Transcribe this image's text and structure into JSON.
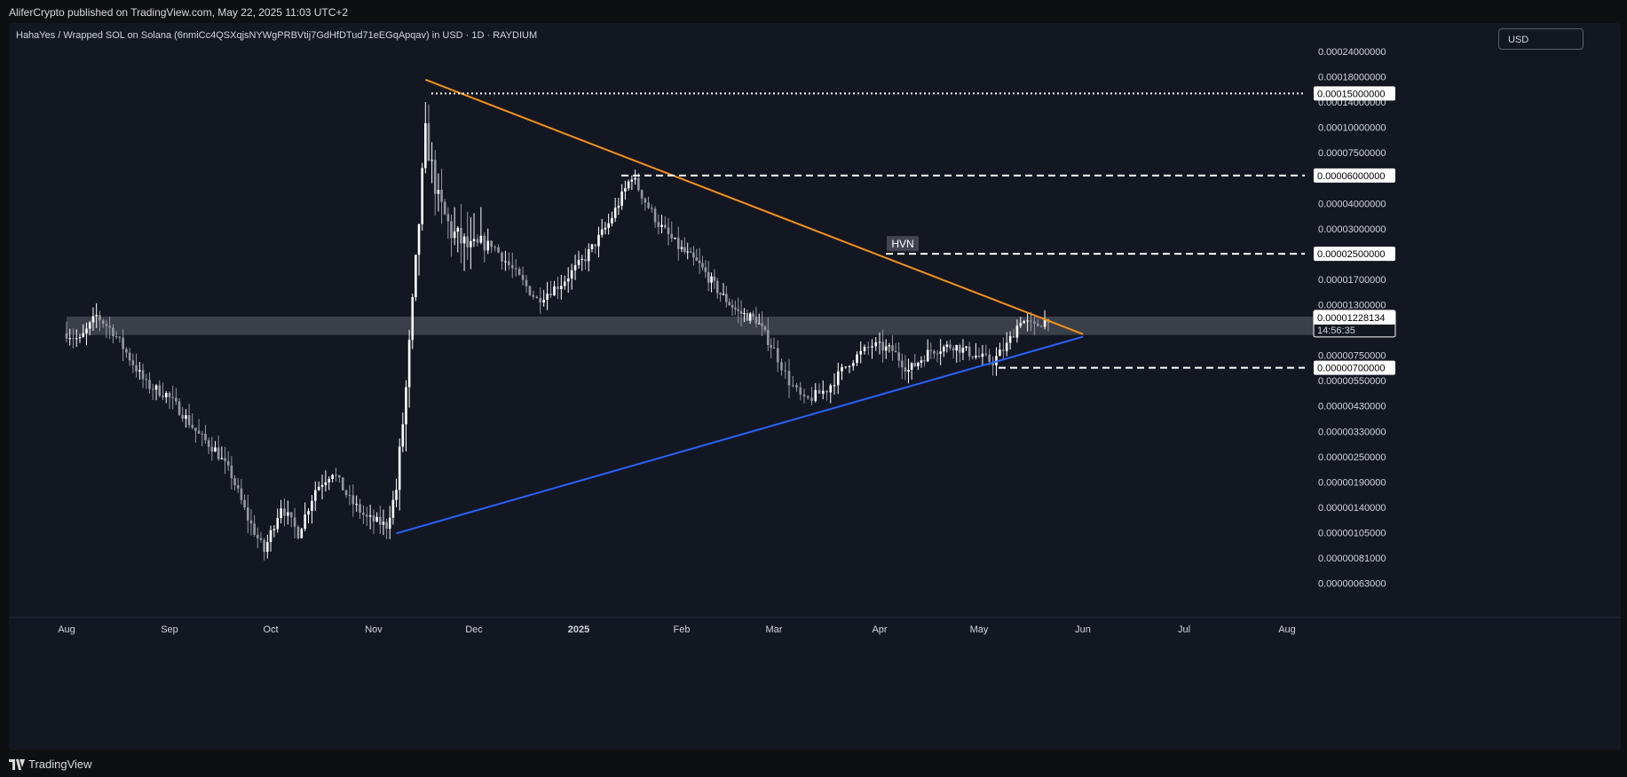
{
  "header": {
    "publisher": "AliferCrypto published on TradingView.com, May 22, 2025 11:03 UTC+2"
  },
  "chart_header": {
    "symbol_line": "HahaYes / Wrapped SOL on Solana (6nmiCc4QSXqjsNYWgPRBVtij7GdHfDTud71eEGqApqav) in USD · 1D · RAYDIUM",
    "currency_button": "USD"
  },
  "footer": {
    "brand": "TradingView"
  },
  "colors": {
    "bg": "#131722",
    "up": "#ffffff",
    "down": "#9598a1",
    "resistance": "#f5921b",
    "support": "#2962ff",
    "zone": "#5d6069"
  },
  "chart_data": {
    "type": "candlestick",
    "scale": "log",
    "x_ticks": [
      "Aug",
      "Sep",
      "Oct",
      "Nov",
      "Dec",
      "2025",
      "Feb",
      "Mar",
      "Apr",
      "May",
      "Jun",
      "Jul",
      "Aug"
    ],
    "y_ticks": [
      "0.00024000000",
      "0.00018000000",
      "0.00014000000",
      "0.00010000000",
      "0.00007500000",
      "0.00005500000",
      "0.00004000000",
      "0.00003000000",
      "0.00002200000",
      "0.00001700000",
      "0.00001300000",
      "0.00001000000",
      "0.00000750000",
      "0.00000550000",
      "0.00000430000",
      "0.00000330000",
      "0.00000250000",
      "0.00000190000",
      "0.00000140000",
      "0.00000105000",
      "0.00000081000",
      "0.00000063000"
    ],
    "price_levels": [
      {
        "label": "0.00015000000",
        "value": 0.00015,
        "style": "dotted"
      },
      {
        "label": "0.00006000000",
        "value": 6e-05,
        "style": "dashed"
      },
      {
        "label": "0.00002500000",
        "value": 2.5e-05,
        "style": "dashed",
        "note": "HVN"
      },
      {
        "label": "0.00000700000",
        "value": 7e-06,
        "style": "dashed"
      }
    ],
    "current_price": {
      "label": "0.00001228134",
      "countdown": "14:56:35",
      "value": 1.228134e-05
    },
    "annotation": "HVN",
    "zone": {
      "low": 1.01e-05,
      "high": 1.24e-05
    },
    "trendlines": [
      {
        "name": "resistance",
        "from": [
          "2024-11-17",
          0.000175
        ],
        "to": [
          "2025-06-01",
          1.02e-05
        ]
      },
      {
        "name": "support",
        "from": [
          "2024-11-08",
          1.1e-06
        ],
        "to": [
          "2025-06-01",
          9.9e-06
        ]
      }
    ],
    "price_path": [
      [
        "2024-07-31",
        1.05e-05
      ],
      [
        "2024-08-05",
        9.5e-06
      ],
      [
        "2024-08-10",
        1.25e-05
      ],
      [
        "2024-08-15",
        1.05e-05
      ],
      [
        "2024-08-20",
        7.8e-06
      ],
      [
        "2024-08-25",
        5.8e-06
      ],
      [
        "2024-08-31",
        5.2e-06
      ],
      [
        "2024-09-05",
        4.2e-06
      ],
      [
        "2024-09-10",
        3.3e-06
      ],
      [
        "2024-09-15",
        2.8e-06
      ],
      [
        "2024-09-20",
        2.1e-06
      ],
      [
        "2024-09-25",
        1.3e-06
      ],
      [
        "2024-09-30",
        9e-07
      ],
      [
        "2024-10-05",
        1.5e-06
      ],
      [
        "2024-10-10",
        1.1e-06
      ],
      [
        "2024-10-15",
        1.8e-06
      ],
      [
        "2024-10-20",
        2.2e-06
      ],
      [
        "2024-10-25",
        1.6e-06
      ],
      [
        "2024-10-30",
        1.3e-06
      ],
      [
        "2024-11-05",
        1.2e-06
      ],
      [
        "2024-11-08",
        1.8e-06
      ],
      [
        "2024-11-11",
        5.5e-06
      ],
      [
        "2024-11-14",
        2.2e-05
      ],
      [
        "2024-11-17",
        9.5e-05
      ],
      [
        "2024-11-21",
        4.5e-05
      ],
      [
        "2024-11-25",
        3.2e-05
      ],
      [
        "2024-12-01",
        2.6e-05
      ],
      [
        "2024-12-07",
        2.8e-05
      ],
      [
        "2024-12-14",
        2e-05
      ],
      [
        "2024-12-20",
        1.5e-05
      ],
      [
        "2024-12-27",
        1.8e-05
      ],
      [
        "2025-01-03",
        2.4e-05
      ],
      [
        "2025-01-10",
        3.5e-05
      ],
      [
        "2025-01-17",
        6e-05
      ],
      [
        "2025-01-21",
        4.5e-05
      ],
      [
        "2025-01-25",
        3.5e-05
      ],
      [
        "2025-01-31",
        2.7e-05
      ],
      [
        "2025-02-07",
        2.2e-05
      ],
      [
        "2025-02-14",
        1.6e-05
      ],
      [
        "2025-02-20",
        1.3e-05
      ],
      [
        "2025-02-26",
        1.2e-05
      ],
      [
        "2025-03-04",
        8.5e-06
      ],
      [
        "2025-03-08",
        6e-06
      ],
      [
        "2025-03-12",
        4.8e-06
      ],
      [
        "2025-03-18",
        5.5e-06
      ],
      [
        "2025-03-24",
        7.5e-06
      ],
      [
        "2025-03-30",
        9e-06
      ],
      [
        "2025-04-05",
        8.5e-06
      ],
      [
        "2025-04-10",
        6.8e-06
      ],
      [
        "2025-04-17",
        8.5e-06
      ],
      [
        "2025-04-24",
        9e-06
      ],
      [
        "2025-05-01",
        8e-06
      ],
      [
        "2025-05-06",
        7.5e-06
      ],
      [
        "2025-05-10",
        9e-06
      ],
      [
        "2025-05-14",
        1.2e-05
      ],
      [
        "2025-05-18",
        1.1e-05
      ],
      [
        "2025-05-22",
        1.23e-05
      ]
    ]
  }
}
